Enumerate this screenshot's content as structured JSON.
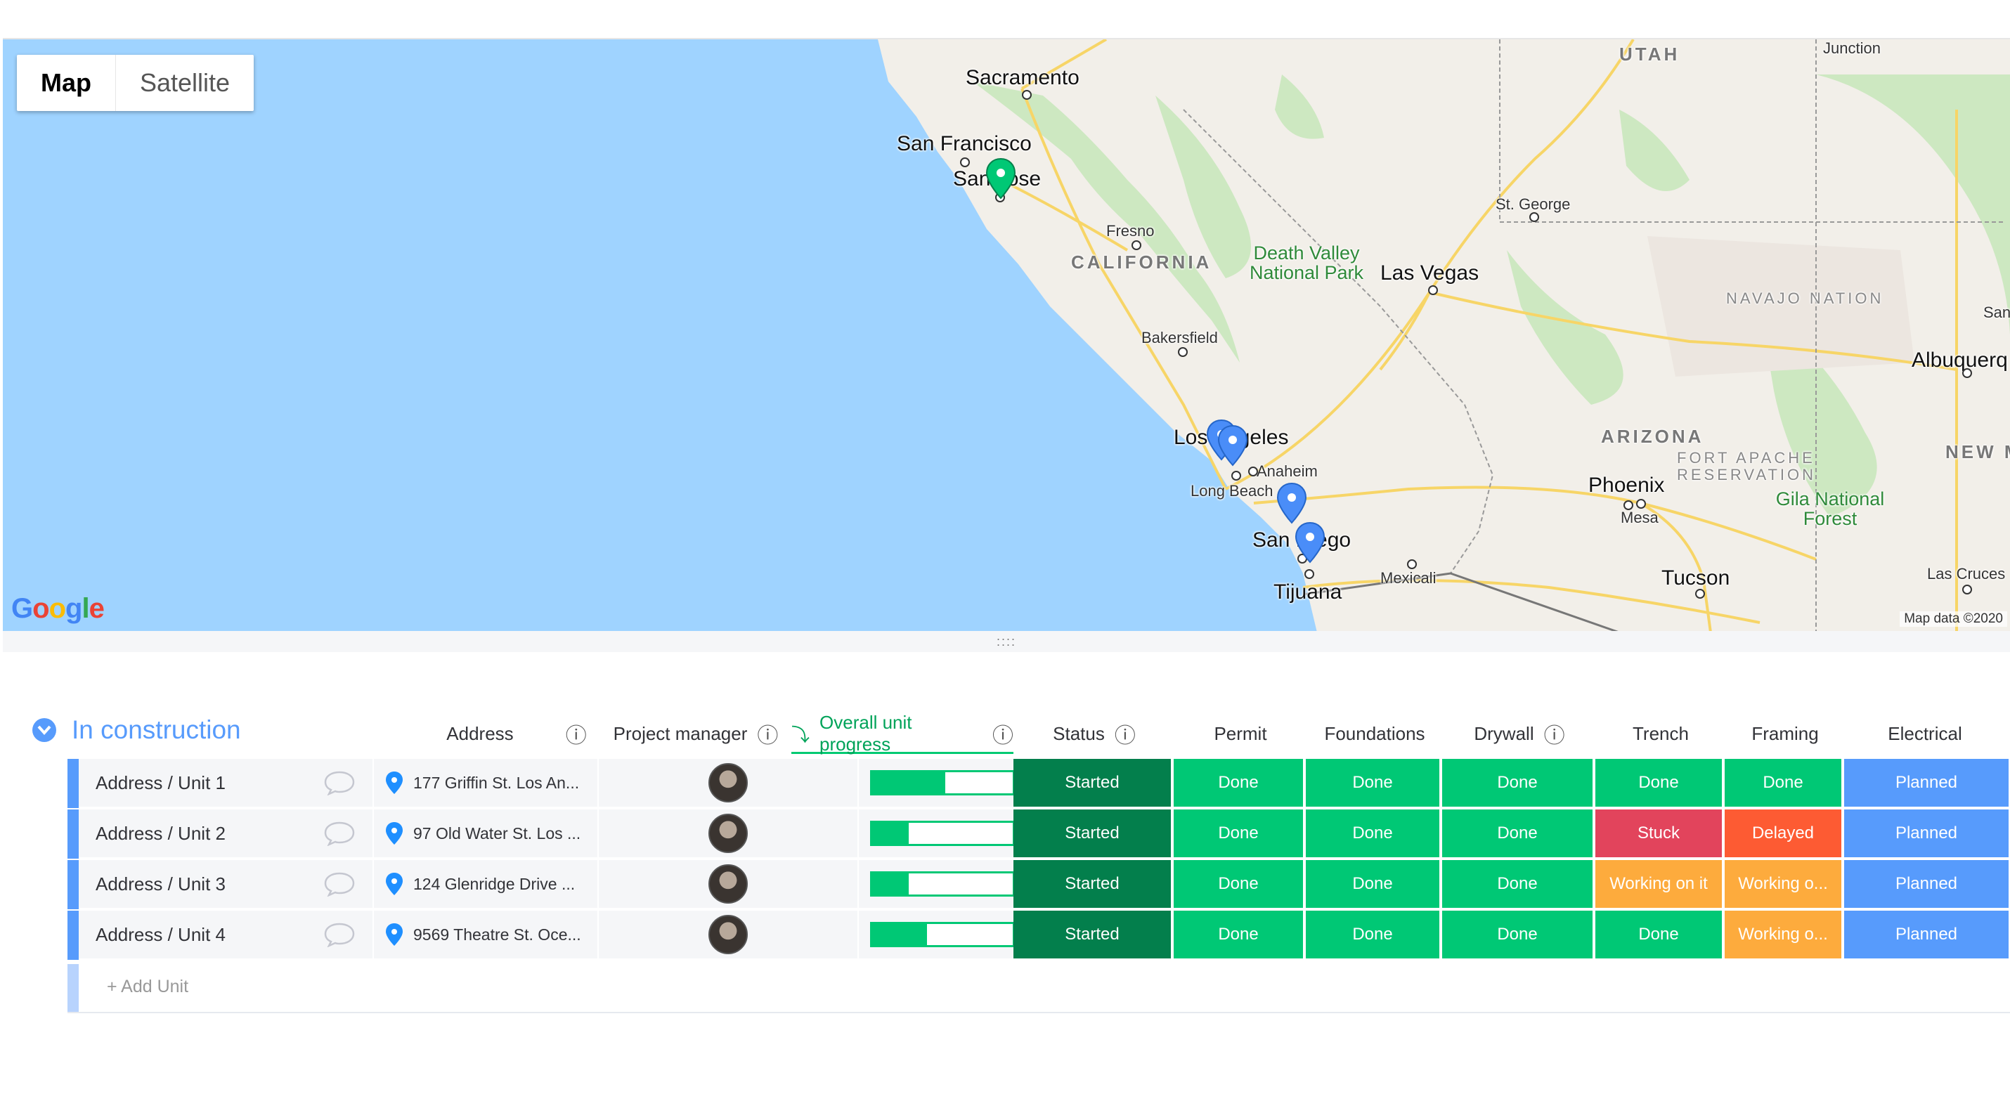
{
  "map": {
    "type_buttons": [
      "Map",
      "Satellite"
    ],
    "attribution": "Map data ©2020",
    "labels": {
      "sacramento": "Sacramento",
      "san_francisco": "San Francisco",
      "san_jose": "San Jose",
      "fresno": "Fresno",
      "california": "CALIFORNIA",
      "death_valley": "Death Valley National Park",
      "las_vegas": "Las Vegas",
      "st_george": "St. George",
      "utah": "UTAH",
      "junction": "Junction",
      "navajo": "NAVAJO NATION",
      "bakersfield": "Bakersfield",
      "los_angeles": "Los Angeles",
      "anaheim": "Anaheim",
      "long_beach": "Long Beach",
      "san_diego": "San Diego",
      "tijuana": "Tijuana",
      "mexicali": "Mexicali",
      "arizona": "ARIZONA",
      "fort_apache": "FORT APACHE RESERVATION",
      "phoenix": "Phoenix",
      "mesa": "Mesa",
      "gila": "Gila National Forest",
      "tucson": "Tucson",
      "albuquerque": "Albuquerq",
      "new_mexico": "NEW M",
      "las_cruces": "Las Cruces",
      "san_cut": "San"
    },
    "logo": "Google"
  },
  "splitter": "::::",
  "group": {
    "title": "In construction",
    "color": "#579bfc",
    "columns": {
      "address": "Address",
      "project_manager": "Project manager",
      "progress": "Overall unit progress",
      "status": "Status",
      "permit": "Permit",
      "foundations": "Foundations",
      "drywall": "Drywall",
      "trench": "Trench",
      "framing": "Framing",
      "electrical": "Electrical"
    },
    "rows": [
      {
        "name": "Address / Unit 1",
        "address": "177 Griffin St. Los An...",
        "progress": 52,
        "progress_label": "52%",
        "status": "Started",
        "permit": "Done",
        "foundations": "Done",
        "drywall": "Done",
        "trench": "Done",
        "framing": "Done",
        "electrical": "Planned"
      },
      {
        "name": "Address / Unit 2",
        "address": "97 Old Water St. Los ...",
        "progress": 26,
        "progress_label": "26%",
        "status": "Started",
        "permit": "Done",
        "foundations": "Done",
        "drywall": "Done",
        "trench": "Stuck",
        "framing": "Delayed",
        "electrical": "Planned"
      },
      {
        "name": "Address / Unit 3",
        "address": "124 Glenridge Drive ...",
        "progress": 26,
        "progress_label": "26%",
        "status": "Started",
        "permit": "Done",
        "foundations": "Done",
        "drywall": "Done",
        "trench": "Working on it",
        "framing": "Working o...",
        "electrical": "Planned"
      },
      {
        "name": "Address / Unit 4",
        "address": "9569 Theatre St. Oce...",
        "progress": 39,
        "progress_label": "39%",
        "status": "Started",
        "permit": "Done",
        "foundations": "Done",
        "drywall": "Done",
        "trench": "Done",
        "framing": "Working o...",
        "electrical": "Planned"
      }
    ],
    "add_label": "+ Add Unit"
  },
  "status_colors": {
    "Started": "#037f4c",
    "Done": "#00c875",
    "Stuck": "#e2445c",
    "Delayed": "#fd5b33",
    "Working on it": "#fdab3d",
    "Working o...": "#fdab3d",
    "Planned": "#579bfc"
  }
}
